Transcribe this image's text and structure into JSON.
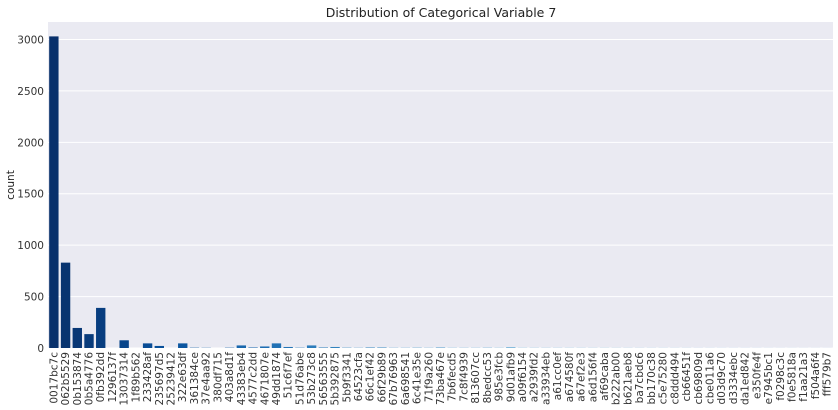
{
  "chart_data": {
    "type": "bar",
    "title": "Distribution of Categorical Variable 7",
    "xlabel": "",
    "ylabel": "count",
    "ylim": [
      0,
      3170
    ],
    "yticks": [
      0,
      500,
      1000,
      1500,
      2000,
      2500,
      3000
    ],
    "grid": "horizontal",
    "palette": "Blues_r",
    "categories": [
      "0017bc7c",
      "062b5529",
      "0b153874",
      "0b5a4776",
      "0fb392dd",
      "1296137f",
      "13037314",
      "1f89b562",
      "233428af",
      "235697d5",
      "25239412",
      "322e63df",
      "361384ce",
      "37e4aa92",
      "380df715",
      "403a8d1f",
      "43383eb4",
      "4577c2dd",
      "4671807e",
      "49dd1874",
      "51c6f7ef",
      "51d76abe",
      "53b273c8",
      "56563555",
      "5b392875",
      "5b9f3341",
      "64523cfa",
      "66c1ef42",
      "66f29b89",
      "67b76963",
      "6a698541",
      "6c41e35e",
      "71f9a260",
      "73ba467e",
      "7b6fecd5",
      "7c8f4939",
      "813607cc",
      "8bedcc53",
      "985e3fcb",
      "9d01afb9",
      "a09f6154",
      "a2939fd2",
      "a33934eb",
      "a61cc0ef",
      "a674580f",
      "a67ef2e3",
      "a6d156f4",
      "af69caba",
      "b222ab00",
      "b621aeb8",
      "ba7cbdc6",
      "bb170c38",
      "c5e75280",
      "c8ddd494",
      "cb66451f",
      "cb69809d",
      "cbe011a6",
      "d03d9c70",
      "d3334ebc",
      "da1ed842",
      "e350fe4f",
      "e7945bc1",
      "f0298c3c",
      "f0e5818a",
      "f1aa21a3",
      "f504a6f4",
      "fff579b7"
    ],
    "values": [
      3030,
      830,
      195,
      135,
      390,
      0,
      75,
      0,
      45,
      20,
      0,
      45,
      3,
      2,
      0,
      3,
      25,
      5,
      15,
      45,
      10,
      3,
      25,
      5,
      10,
      3,
      2,
      5,
      5,
      2,
      2,
      3,
      2,
      5,
      2,
      2,
      2,
      3,
      2,
      8,
      2,
      2,
      2,
      2,
      2,
      2,
      2,
      2,
      2,
      2,
      2,
      2,
      2,
      2,
      2,
      2,
      2,
      2,
      2,
      2,
      2,
      2,
      2,
      2,
      2,
      2,
      2
    ]
  }
}
